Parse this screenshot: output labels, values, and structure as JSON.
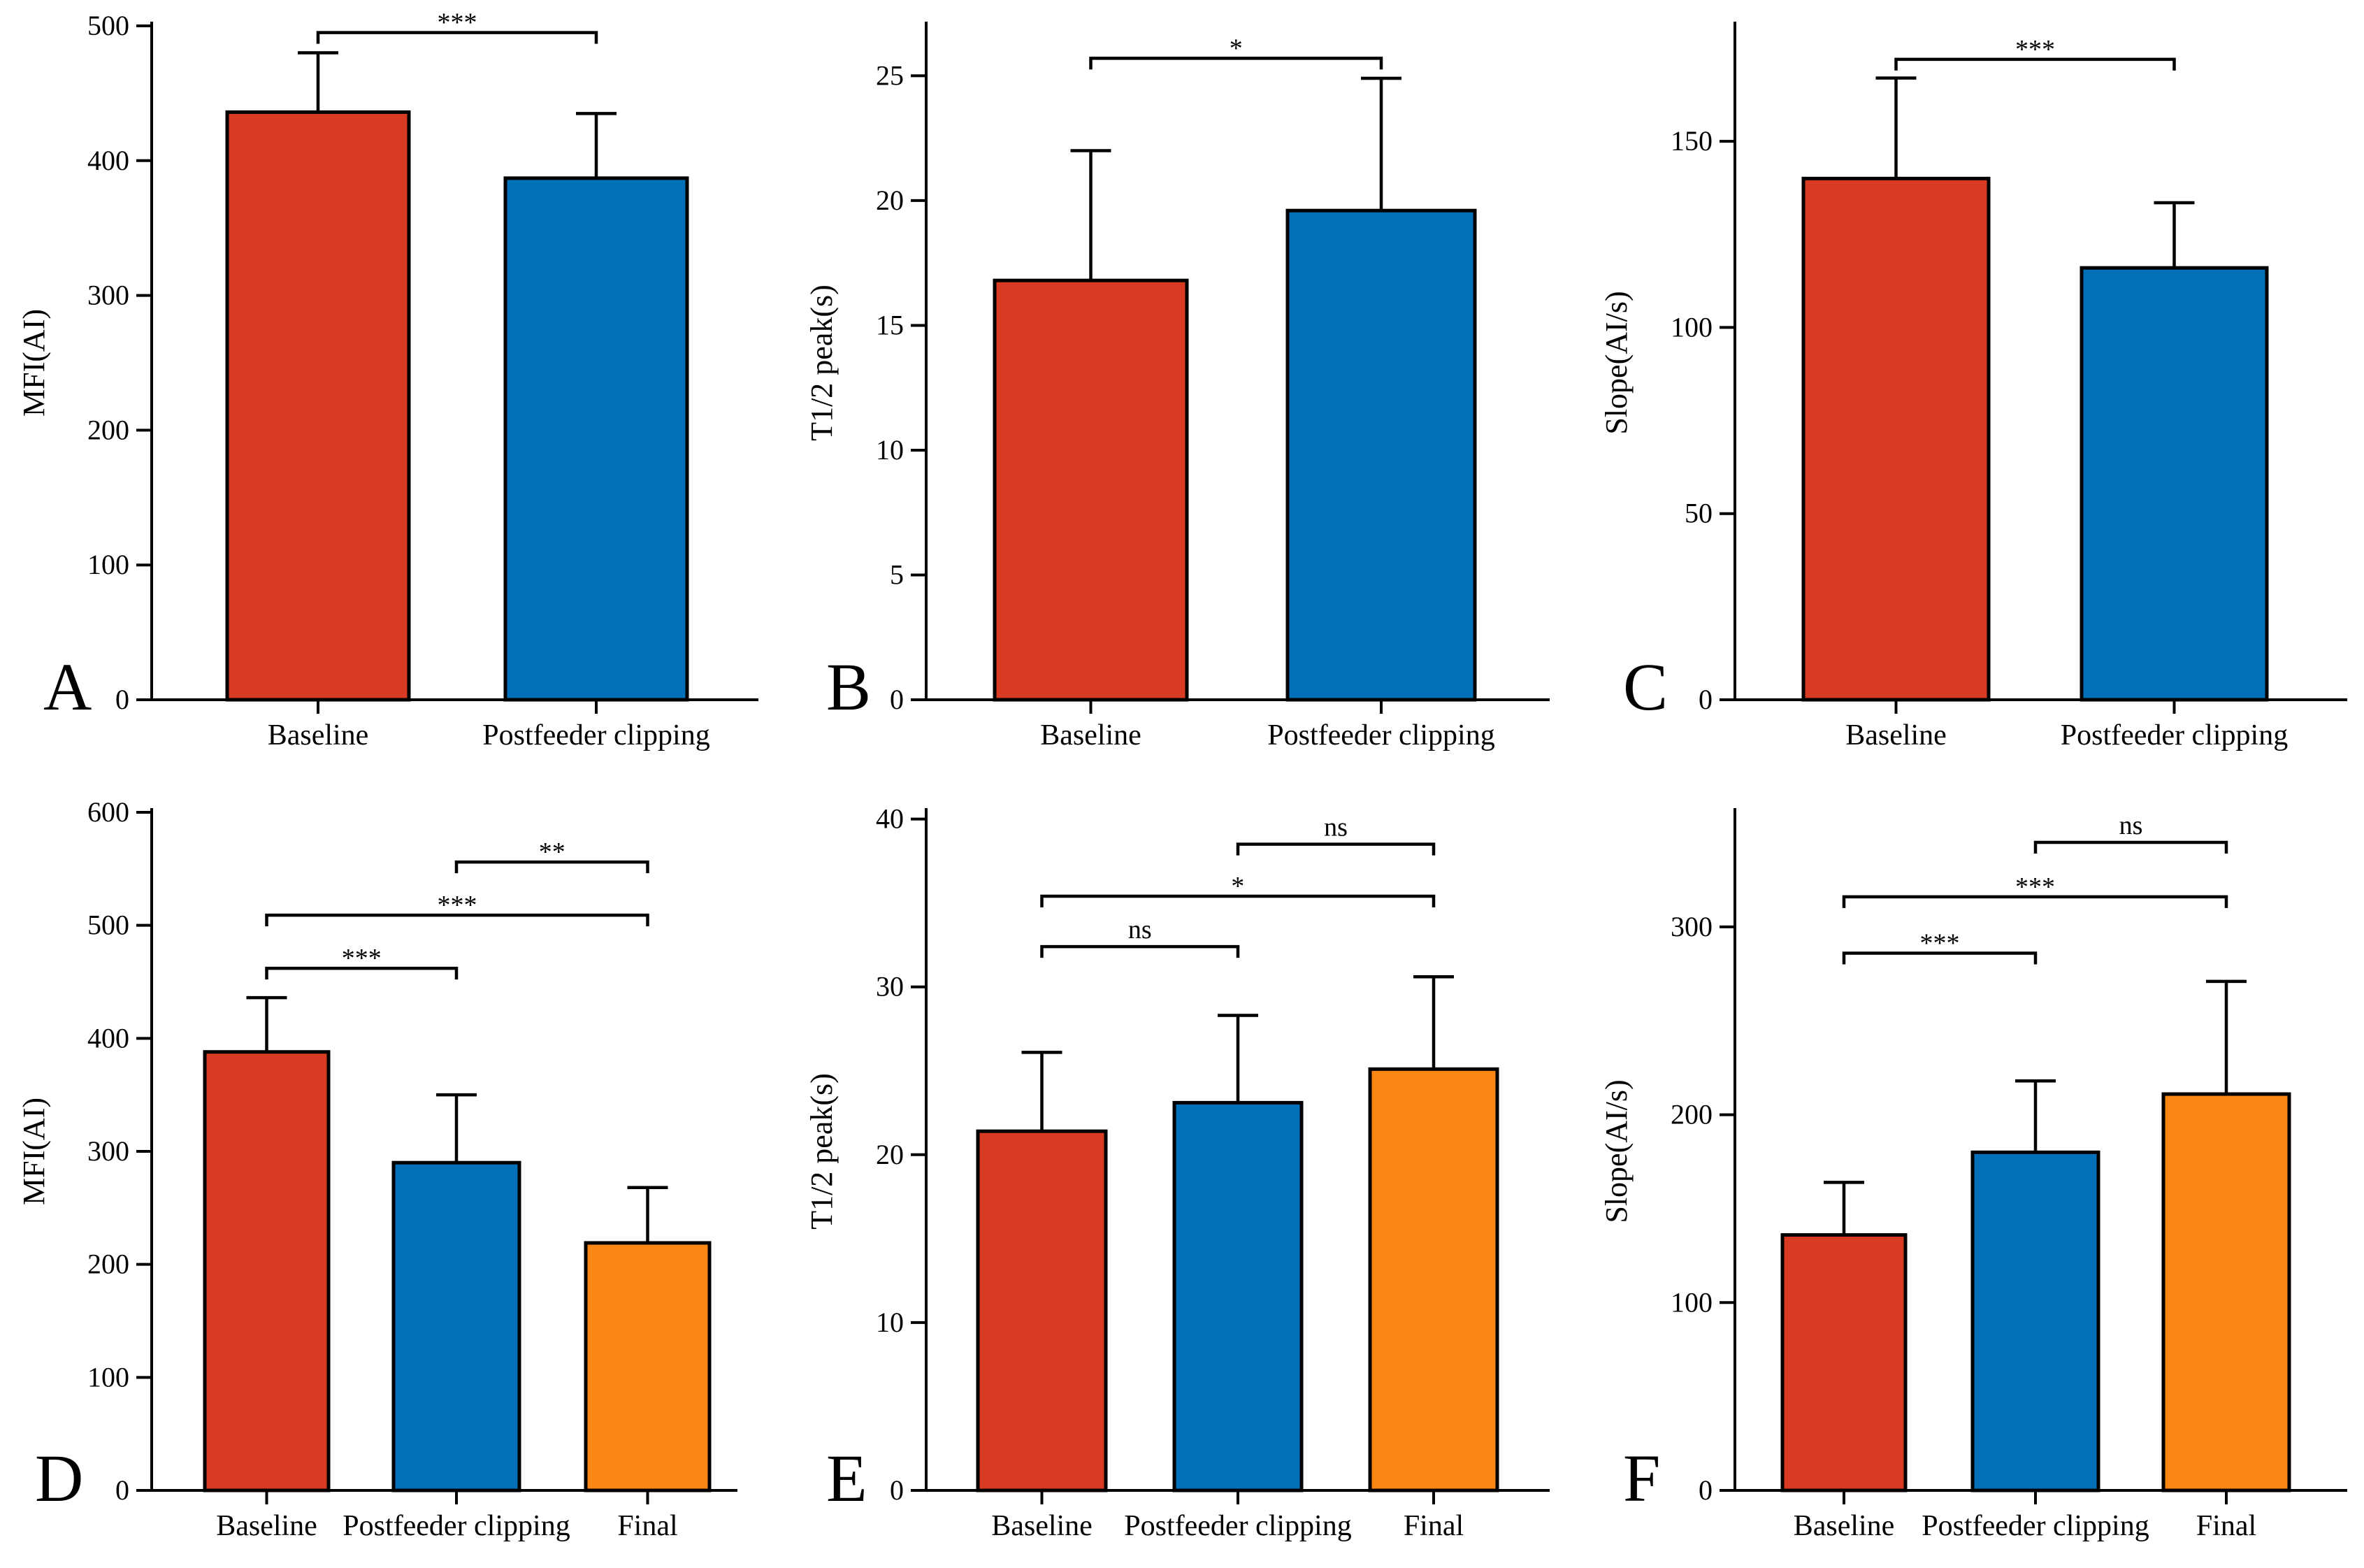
{
  "colors": {
    "baseline": "#D93A22",
    "postfeeder": "#0270B8",
    "final": "#FA8613"
  },
  "chart_data": [
    {
      "id": "A",
      "type": "bar",
      "panel_label": "A",
      "ylabel": "MFI(AI)",
      "ylim": [
        0,
        500
      ],
      "yticks": [
        0,
        100,
        200,
        300,
        400,
        500
      ],
      "categories": [
        "Baseline",
        "Postfeeder clipping"
      ],
      "series": [
        {
          "name": "mean",
          "values": [
            436,
            387
          ],
          "errors": [
            44,
            48
          ]
        }
      ],
      "comparisons": [
        {
          "from": 0,
          "to": 1,
          "label": "***",
          "y": 495
        }
      ]
    },
    {
      "id": "B",
      "type": "bar",
      "panel_label": "B",
      "ylabel": "T1/2 peak(s)",
      "ylim": [
        0,
        27
      ],
      "yticks": [
        0,
        5,
        10,
        15,
        20,
        25
      ],
      "categories": [
        "Baseline",
        "Postfeeder clipping"
      ],
      "series": [
        {
          "name": "mean",
          "values": [
            16.8,
            19.6
          ],
          "errors": [
            5.2,
            5.3
          ]
        }
      ],
      "comparisons": [
        {
          "from": 0,
          "to": 1,
          "label": "*",
          "y": 25.7
        }
      ]
    },
    {
      "id": "C",
      "type": "bar",
      "panel_label": "C",
      "ylabel": "Slope(AI/s)",
      "ylim": [
        0,
        181
      ],
      "yticks": [
        0,
        50,
        100,
        150
      ],
      "categories": [
        "Baseline",
        "Postfeeder clipping"
      ],
      "series": [
        {
          "name": "mean",
          "values": [
            140,
            116
          ],
          "errors": [
            27,
            17.5
          ]
        }
      ],
      "comparisons": [
        {
          "from": 0,
          "to": 1,
          "label": "***",
          "y": 172
        }
      ]
    },
    {
      "id": "D",
      "type": "bar",
      "panel_label": "D",
      "ylabel": "MFI(AI)",
      "ylim": [
        0,
        600
      ],
      "yticks": [
        0,
        100,
        200,
        300,
        400,
        500,
        600
      ],
      "categories": [
        "Baseline",
        "Postfeeder clipping",
        "Final"
      ],
      "series": [
        {
          "name": "mean",
          "values": [
            388,
            290,
            219
          ],
          "errors": [
            48,
            60,
            49
          ]
        }
      ],
      "comparisons": [
        {
          "from": 0,
          "to": 1,
          "label": "***",
          "y": 462
        },
        {
          "from": 0,
          "to": 2,
          "label": "***",
          "y": 509
        },
        {
          "from": 1,
          "to": 2,
          "label": "**",
          "y": 556
        }
      ]
    },
    {
      "id": "E",
      "type": "bar",
      "panel_label": "E",
      "ylabel": "T1/2 peak(s)",
      "ylim": [
        0,
        40.4
      ],
      "yticks": [
        0,
        10,
        20,
        30,
        40
      ],
      "categories": [
        "Baseline",
        "Postfeeder clipping",
        "Final"
      ],
      "series": [
        {
          "name": "mean",
          "values": [
            21.4,
            23.1,
            25.1
          ],
          "errors": [
            4.7,
            5.2,
            5.5
          ]
        }
      ],
      "comparisons": [
        {
          "from": 0,
          "to": 1,
          "label": "ns",
          "y": 32.4
        },
        {
          "from": 0,
          "to": 2,
          "label": "*",
          "y": 35.4
        },
        {
          "from": 1,
          "to": 2,
          "label": "ns",
          "y": 38.5
        }
      ]
    },
    {
      "id": "F",
      "type": "bar",
      "panel_label": "F",
      "ylabel": "Slope(AI/s)",
      "ylim": [
        0,
        361
      ],
      "yticks": [
        0,
        100,
        200,
        300
      ],
      "categories": [
        "Baseline",
        "Postfeeder clipping",
        "Final"
      ],
      "series": [
        {
          "name": "mean",
          "values": [
            136,
            180,
            211
          ],
          "errors": [
            28,
            38,
            60
          ]
        }
      ],
      "comparisons": [
        {
          "from": 0,
          "to": 1,
          "label": "***",
          "y": 286
        },
        {
          "from": 0,
          "to": 2,
          "label": "***",
          "y": 316
        },
        {
          "from": 1,
          "to": 2,
          "label": "ns",
          "y": 345
        }
      ]
    }
  ]
}
